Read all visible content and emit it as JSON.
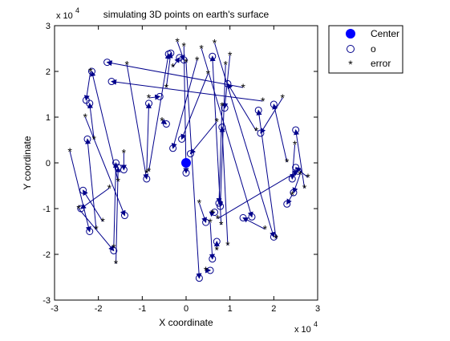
{
  "chart_data": {
    "type": "scatter",
    "title": "simulating 3D points on earth's surface",
    "xlabel": "X coordinate",
    "ylabel": "Y coordinate",
    "xlim": [
      -3,
      3
    ],
    "ylim": [
      -3,
      3
    ],
    "x_ticks": [
      -3,
      -2,
      -1,
      0,
      1,
      2,
      3
    ],
    "y_ticks": [
      -3,
      -2,
      -1,
      0,
      1,
      2,
      3
    ],
    "x_tick_labels": [
      "-3",
      "-2",
      "-1",
      "0",
      "1",
      "2",
      "3"
    ],
    "y_tick_labels": [
      "-3",
      "-2",
      "-1",
      "0",
      "1",
      "2",
      "3"
    ],
    "x_exponent": "x 10",
    "x_exponent_power": "4",
    "y_exponent": "x 10",
    "y_exponent_power": "4",
    "grid": false,
    "legend_position": "top-right",
    "colors": {
      "center": "#0000ff",
      "points": "#00008b",
      "error": "#00008b",
      "arrows": "#00008b"
    },
    "series": [
      {
        "name": "Center",
        "marker": "filled-circle",
        "x": [
          0
        ],
        "y": [
          0
        ]
      },
      {
        "name": "o",
        "marker": "circle",
        "x": [
          -2.2,
          -1.65,
          -1.4,
          -2.28,
          -2.2,
          -2.25,
          -2.35,
          -2.4,
          -1.6,
          -1.55,
          -2.15,
          -1.42,
          -0.9,
          -0.85,
          -0.6,
          -0.45,
          -0.35,
          -0.15,
          -0.05,
          0.0,
          0.3,
          0.45,
          0.55,
          0.6,
          0.65,
          0.7,
          0.75,
          0.78,
          0.82,
          0.88,
          0.95,
          1.3,
          1.65,
          1.7,
          2.0,
          2.3,
          2.42,
          2.45,
          2.5,
          2.5,
          1.5,
          2.0,
          2.55,
          0.6,
          -0.4,
          -0.3,
          -0.1,
          0.1,
          -1.8,
          -1.7
        ],
        "y": [
          -1.5,
          -1.92,
          -1.15,
          1.37,
          1.3,
          0.52,
          -0.6,
          -1.0,
          0.0,
          -0.1,
          2.0,
          -0.15,
          -0.35,
          1.3,
          1.45,
          0.85,
          2.4,
          2.3,
          2.25,
          -0.22,
          -2.52,
          -1.3,
          -2.35,
          -2.1,
          -1.08,
          -1.72,
          -0.88,
          -0.95,
          0.78,
          1.2,
          1.73,
          -1.2,
          1.15,
          0.65,
          1.28,
          -0.9,
          -0.35,
          -0.65,
          0.72,
          -0.1,
          -1.18,
          -1.62,
          -0.18,
          2.33,
          2.38,
          0.32,
          0.52,
          0.2,
          2.2,
          1.78
        ]
      },
      {
        "name": "error",
        "marker": "star",
        "x": [
          -2.65,
          -2.45,
          -2.3,
          -2.18,
          -2.1,
          -2.05,
          -1.9,
          -1.75,
          -1.65,
          -1.6,
          -1.55,
          -1.42,
          -1.35,
          -0.9,
          -0.85,
          -0.55,
          -0.45,
          -0.3,
          -0.2,
          -0.05,
          0.0,
          0.3,
          0.45,
          0.55,
          0.6,
          0.7,
          0.82,
          0.9,
          0.95,
          1.0,
          1.6,
          1.8,
          2.05,
          2.2,
          2.3,
          2.42,
          2.48,
          2.6,
          2.7,
          2.78,
          0.35,
          0.65,
          0.72,
          0.8,
          -0.85,
          0.25,
          0.5,
          0.7,
          1.3,
          1.75
        ],
        "y": [
          0.25,
          -1.0,
          1.0,
          2.0,
          0.52,
          -1.45,
          -1.28,
          -0.55,
          -1.85,
          -2.2,
          -0.4,
          0.22,
          2.15,
          -0.22,
          1.42,
          0.92,
          1.65,
          2.1,
          2.65,
          2.55,
          2.2,
          -0.88,
          -2.35,
          -1.3,
          -1.1,
          -1.9,
          1.25,
          2.15,
          -1.8,
          2.35,
          0.7,
          -1.45,
          -1.65,
          1.42,
          0.02,
          -0.7,
          0.4,
          -0.25,
          -0.55,
          -0.32,
          2.5,
          2.62,
          -1.22,
          -1.35,
          -0.18,
          2.25,
          1.95,
          0.9,
          1.65,
          1.35
        ]
      }
    ]
  }
}
